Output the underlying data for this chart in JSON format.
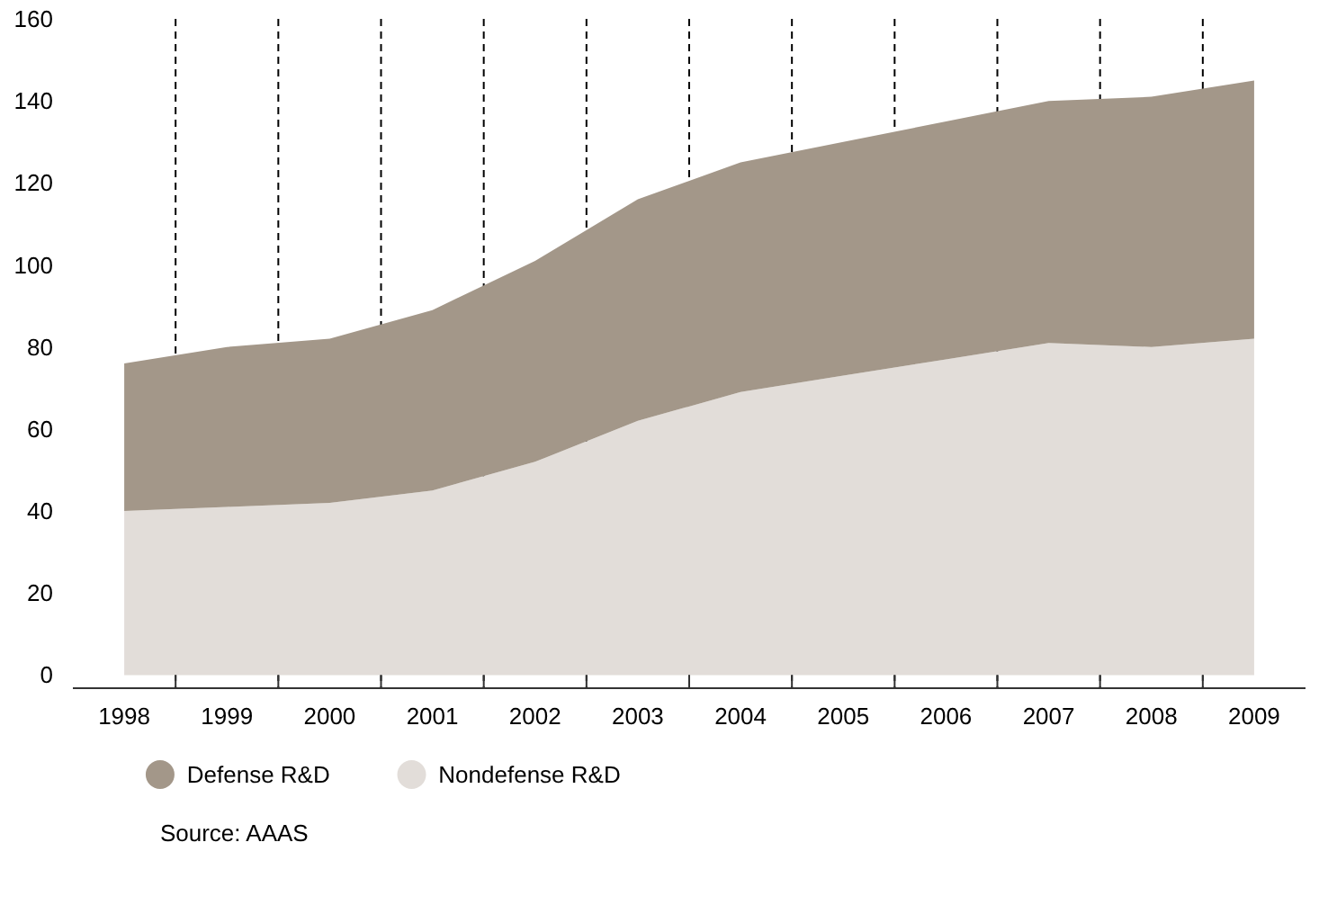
{
  "chart_data": {
    "type": "area",
    "stacked": true,
    "categories": [
      "1998",
      "1999",
      "2000",
      "2001",
      "2002",
      "2003",
      "2004",
      "2005",
      "2006",
      "2007",
      "2008",
      "2009"
    ],
    "series": [
      {
        "name": "Nondefense R&D",
        "color": "#e2ddd9",
        "values": [
          40,
          41,
          42,
          45,
          52,
          62,
          69,
          73,
          77,
          81,
          80,
          82
        ]
      },
      {
        "name": "Defense R&D",
        "color": "#a39789",
        "values": [
          36,
          39,
          40,
          44,
          49,
          54,
          56,
          57,
          58,
          59,
          61,
          63
        ]
      }
    ],
    "ylim": [
      0,
      160
    ],
    "yticks": [
      0,
      20,
      40,
      60,
      80,
      100,
      120,
      140,
      160
    ],
    "grid": "x",
    "legend": "bottom",
    "annotations": [
      "Source: AAAS"
    ]
  }
}
